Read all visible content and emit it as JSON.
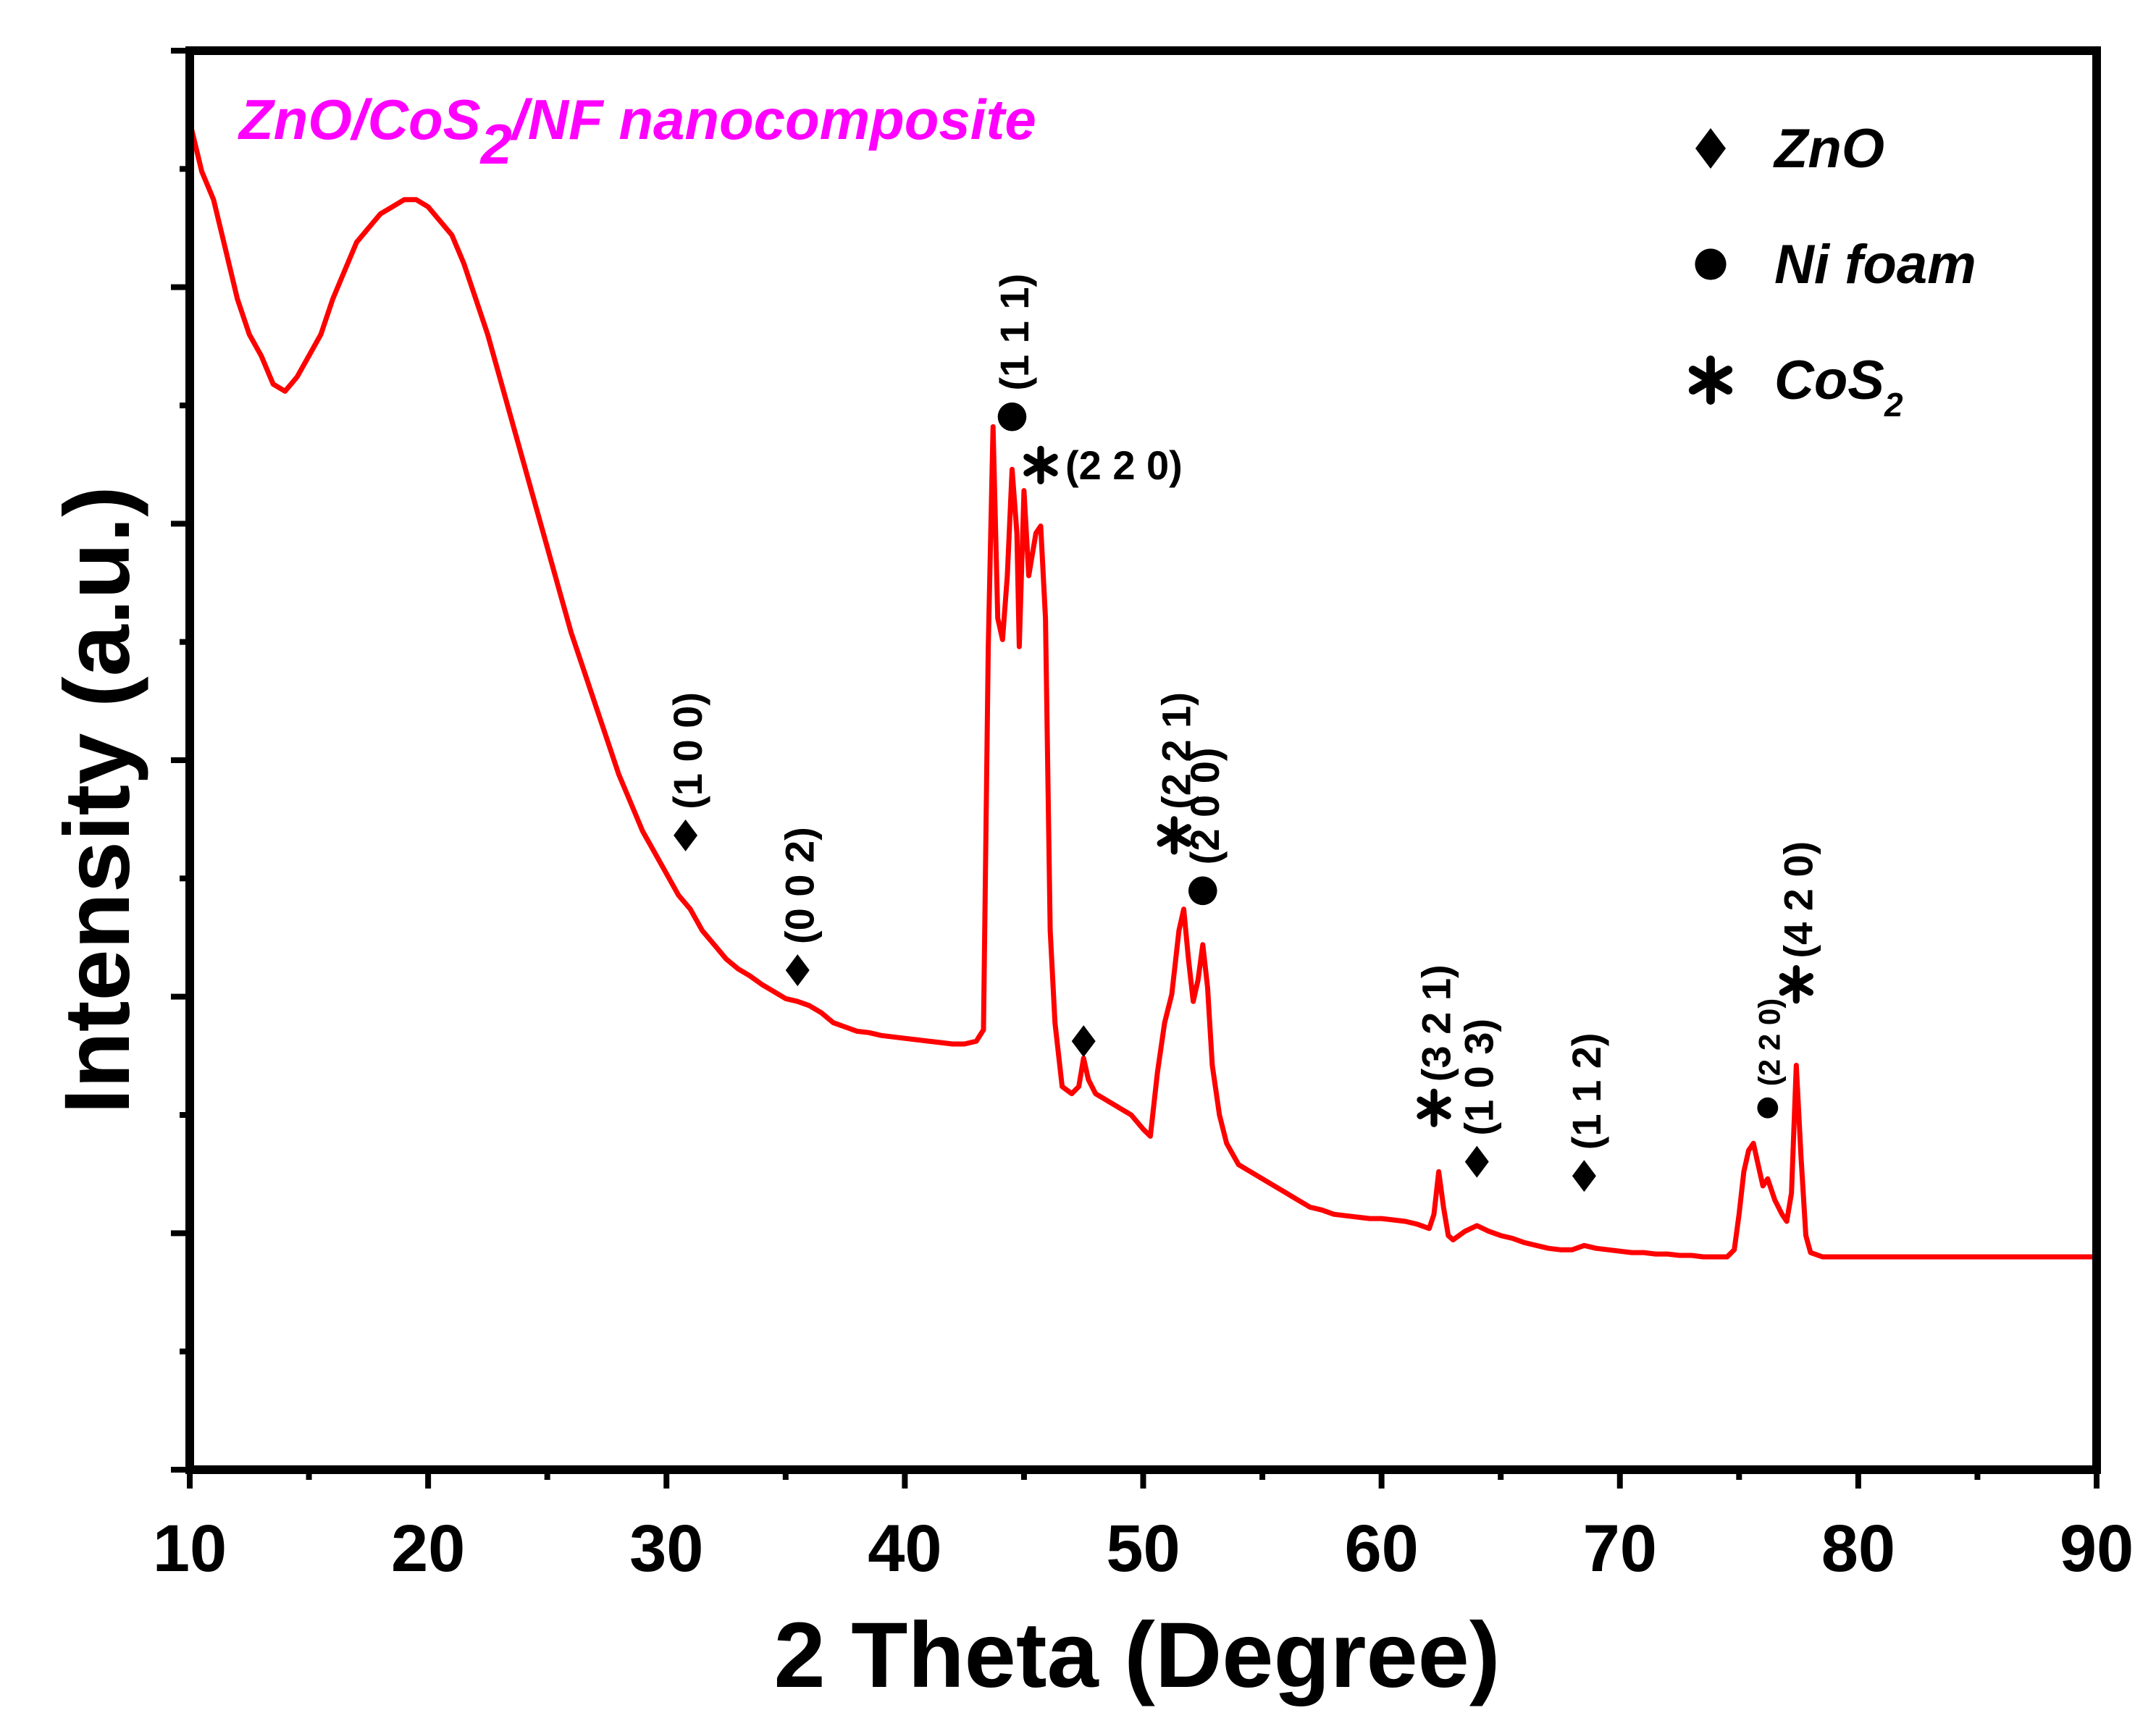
{
  "chart_data": {
    "type": "line",
    "title": "ZnO/CoS₂/NF nanocomposite",
    "title_parts": {
      "before": "ZnO/CoS",
      "sub": "2",
      "after": "/NF nanocomposite"
    },
    "xlabel": "2 Theta (Degree)",
    "ylabel": "Intensity (a.u.)",
    "xlim": [
      10,
      90
    ],
    "ylim": [
      0,
      100
    ],
    "x_ticks": [
      10,
      20,
      30,
      40,
      50,
      60,
      70,
      80,
      90
    ],
    "grid": false,
    "series_color": "#ff0000",
    "title_color": "#ff00ff",
    "series": [
      {
        "name": "ZnO/CoS2/NF",
        "points": [
          [
            10.0,
            95.0
          ],
          [
            10.5,
            91.5
          ],
          [
            11.0,
            89.5
          ],
          [
            11.5,
            86.0
          ],
          [
            12.0,
            82.5
          ],
          [
            12.5,
            80.0
          ],
          [
            13.0,
            78.5
          ],
          [
            13.5,
            76.5
          ],
          [
            14.0,
            76.0
          ],
          [
            14.5,
            77.0
          ],
          [
            15.0,
            78.5
          ],
          [
            15.5,
            80.0
          ],
          [
            16.0,
            82.5
          ],
          [
            16.5,
            84.5
          ],
          [
            17.0,
            86.5
          ],
          [
            17.5,
            87.5
          ],
          [
            18.0,
            88.5
          ],
          [
            18.5,
            89.0
          ],
          [
            19.0,
            89.5
          ],
          [
            19.5,
            89.5
          ],
          [
            20.0,
            89.0
          ],
          [
            20.5,
            88.0
          ],
          [
            21.0,
            87.0
          ],
          [
            21.5,
            85.0
          ],
          [
            22.0,
            82.5
          ],
          [
            22.5,
            80.0
          ],
          [
            23.0,
            77.0
          ],
          [
            23.5,
            74.0
          ],
          [
            24.0,
            71.0
          ],
          [
            24.5,
            68.0
          ],
          [
            25.0,
            65.0
          ],
          [
            25.5,
            62.0
          ],
          [
            26.0,
            59.0
          ],
          [
            26.5,
            56.5
          ],
          [
            27.0,
            54.0
          ],
          [
            27.5,
            51.5
          ],
          [
            28.0,
            49.0
          ],
          [
            28.5,
            47.0
          ],
          [
            29.0,
            45.0
          ],
          [
            29.5,
            43.5
          ],
          [
            30.0,
            42.0
          ],
          [
            30.5,
            40.5
          ],
          [
            31.0,
            39.5
          ],
          [
            31.5,
            38.0
          ],
          [
            32.0,
            37.0
          ],
          [
            32.5,
            36.0
          ],
          [
            33.0,
            35.3
          ],
          [
            33.5,
            34.8
          ],
          [
            34.0,
            34.2
          ],
          [
            34.5,
            33.7
          ],
          [
            35.0,
            33.2
          ],
          [
            35.5,
            33.0
          ],
          [
            36.0,
            32.7
          ],
          [
            36.5,
            32.2
          ],
          [
            37.0,
            31.5
          ],
          [
            37.5,
            31.2
          ],
          [
            38.0,
            30.9
          ],
          [
            38.5,
            30.8
          ],
          [
            39.0,
            30.6
          ],
          [
            39.5,
            30.5
          ],
          [
            40.0,
            30.4
          ],
          [
            40.5,
            30.3
          ],
          [
            41.0,
            30.2
          ],
          [
            41.5,
            30.1
          ],
          [
            42.0,
            30.0
          ],
          [
            42.5,
            30.0
          ],
          [
            43.0,
            30.2
          ],
          [
            43.3,
            31.0
          ],
          [
            43.5,
            58.0
          ],
          [
            43.7,
            73.5
          ],
          [
            43.9,
            60.0
          ],
          [
            44.1,
            58.5
          ],
          [
            44.3,
            63.0
          ],
          [
            44.5,
            70.5
          ],
          [
            44.7,
            66.0
          ],
          [
            44.8,
            58.0
          ],
          [
            45.0,
            69.0
          ],
          [
            45.2,
            63.0
          ],
          [
            45.5,
            66.0
          ],
          [
            45.7,
            66.5
          ],
          [
            45.9,
            60.0
          ],
          [
            46.1,
            38.0
          ],
          [
            46.3,
            31.5
          ],
          [
            46.6,
            27.0
          ],
          [
            47.0,
            26.5
          ],
          [
            47.3,
            27.0
          ],
          [
            47.5,
            29.0
          ],
          [
            47.7,
            27.5
          ],
          [
            48.0,
            26.5
          ],
          [
            48.5,
            26.0
          ],
          [
            49.0,
            25.5
          ],
          [
            49.5,
            25.0
          ],
          [
            50.0,
            24.0
          ],
          [
            50.3,
            23.5
          ],
          [
            50.6,
            28.0
          ],
          [
            50.9,
            31.5
          ],
          [
            51.2,
            33.5
          ],
          [
            51.5,
            38.0
          ],
          [
            51.7,
            39.5
          ],
          [
            51.9,
            36.0
          ],
          [
            52.1,
            33.0
          ],
          [
            52.3,
            34.5
          ],
          [
            52.5,
            37.0
          ],
          [
            52.7,
            34.0
          ],
          [
            52.9,
            28.5
          ],
          [
            53.2,
            25.0
          ],
          [
            53.5,
            23.0
          ],
          [
            54.0,
            21.5
          ],
          [
            54.5,
            21.0
          ],
          [
            55.0,
            20.5
          ],
          [
            55.5,
            20.0
          ],
          [
            56.0,
            19.5
          ],
          [
            56.5,
            19.0
          ],
          [
            57.0,
            18.5
          ],
          [
            57.5,
            18.3
          ],
          [
            58.0,
            18.0
          ],
          [
            58.5,
            17.9
          ],
          [
            59.0,
            17.8
          ],
          [
            59.5,
            17.7
          ],
          [
            60.0,
            17.7
          ],
          [
            60.5,
            17.6
          ],
          [
            61.0,
            17.5
          ],
          [
            61.5,
            17.3
          ],
          [
            62.0,
            17.0
          ],
          [
            62.2,
            18.0
          ],
          [
            62.4,
            21.0
          ],
          [
            62.6,
            18.5
          ],
          [
            62.8,
            16.5
          ],
          [
            63.0,
            16.2
          ],
          [
            63.5,
            16.8
          ],
          [
            64.0,
            17.2
          ],
          [
            64.5,
            16.8
          ],
          [
            65.0,
            16.5
          ],
          [
            65.5,
            16.3
          ],
          [
            66.0,
            16.0
          ],
          [
            66.5,
            15.8
          ],
          [
            67.0,
            15.6
          ],
          [
            67.5,
            15.5
          ],
          [
            68.0,
            15.5
          ],
          [
            68.5,
            15.8
          ],
          [
            69.0,
            15.6
          ],
          [
            69.5,
            15.5
          ],
          [
            70.0,
            15.4
          ],
          [
            70.5,
            15.3
          ],
          [
            71.0,
            15.3
          ],
          [
            71.5,
            15.2
          ],
          [
            72.0,
            15.2
          ],
          [
            72.5,
            15.1
          ],
          [
            73.0,
            15.1
          ],
          [
            73.5,
            15.0
          ],
          [
            74.0,
            15.0
          ],
          [
            74.5,
            15.0
          ],
          [
            74.8,
            15.5
          ],
          [
            75.0,
            18.0
          ],
          [
            75.2,
            21.0
          ],
          [
            75.4,
            22.5
          ],
          [
            75.6,
            23.0
          ],
          [
            75.8,
            21.5
          ],
          [
            76.0,
            20.0
          ],
          [
            76.2,
            20.5
          ],
          [
            76.5,
            19.0
          ],
          [
            76.8,
            18.0
          ],
          [
            77.0,
            17.5
          ],
          [
            77.2,
            19.5
          ],
          [
            77.4,
            28.5
          ],
          [
            77.6,
            22.0
          ],
          [
            77.8,
            16.5
          ],
          [
            78.0,
            15.3
          ],
          [
            78.5,
            15.0
          ],
          [
            79.0,
            15.0
          ],
          [
            80.0,
            15.0
          ],
          [
            81.0,
            15.0
          ],
          [
            82.0,
            15.0
          ],
          [
            83.0,
            15.0
          ],
          [
            84.0,
            15.0
          ],
          [
            85.0,
            15.0
          ],
          [
            86.0,
            15.0
          ],
          [
            87.0,
            15.0
          ],
          [
            88.0,
            15.0
          ],
          [
            89.0,
            15.0
          ],
          [
            90.0,
            15.0
          ]
        ]
      }
    ],
    "legend": {
      "position": "top-right",
      "entries": [
        {
          "marker": "diamond",
          "label": "ZnO"
        },
        {
          "marker": "circle",
          "label": "Ni foam"
        },
        {
          "marker": "asterisk",
          "label": "CoS",
          "label_sub": "2"
        }
      ]
    },
    "annotations": [
      {
        "marker": "diamond",
        "x": 30.8,
        "y": 44.7,
        "label": "(1 0 0)",
        "rotate": true
      },
      {
        "marker": "diamond",
        "x": 35.5,
        "y": 35.2,
        "label": "(0 0 2)",
        "rotate": true
      },
      {
        "marker": "circle",
        "x": 44.5,
        "y": 74.2,
        "label": "(1 1 1)",
        "rotate": true
      },
      {
        "marker": "asterisk",
        "x": 45.7,
        "y": 70.8,
        "label": "(2 2 0)",
        "rotate": false
      },
      {
        "marker": "diamond",
        "x": 47.5,
        "y": 30.2,
        "label": "",
        "rotate": false
      },
      {
        "marker": "asterisk",
        "x": 51.3,
        "y": 44.7,
        "label": "(2 2 1)",
        "rotate": true
      },
      {
        "marker": "circle",
        "x": 52.5,
        "y": 40.8,
        "label": "(2 0 0)",
        "rotate": true
      },
      {
        "marker": "asterisk",
        "x": 62.2,
        "y": 25.5,
        "label": "(3 2 1)",
        "rotate": true
      },
      {
        "marker": "diamond",
        "x": 64.0,
        "y": 21.7,
        "label": "(1 0 3)",
        "rotate": true
      },
      {
        "marker": "diamond",
        "x": 68.5,
        "y": 20.7,
        "label": "(1 1 2)",
        "rotate": true
      },
      {
        "marker": "circle",
        "x": 76.2,
        "y": 25.5,
        "label": "(2 2 0)",
        "rotate": true,
        "small": true
      },
      {
        "marker": "asterisk",
        "x": 77.4,
        "y": 34.2,
        "label": "(4 2 0)",
        "rotate": true
      }
    ]
  }
}
